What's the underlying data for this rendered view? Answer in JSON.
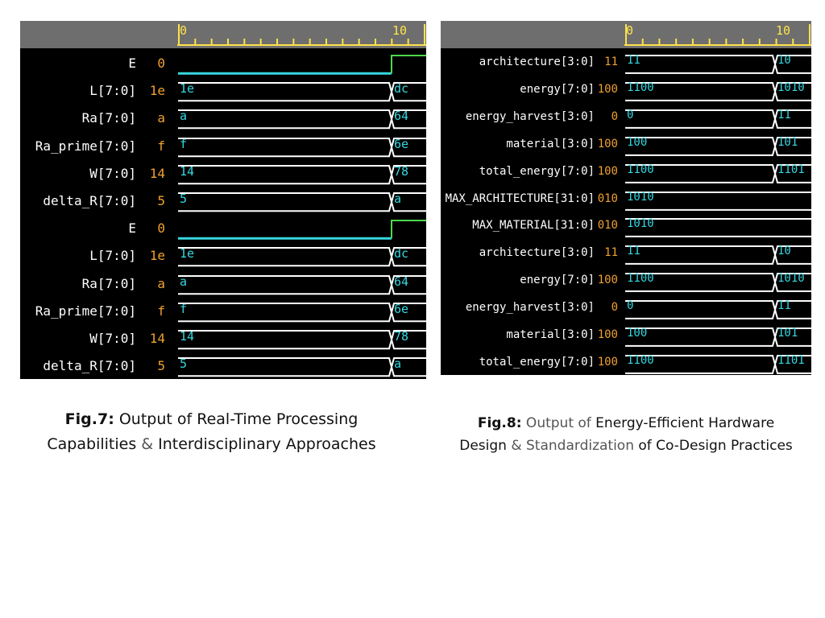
{
  "fig7": {
    "caption_label": "Fig.7:",
    "caption_line1_rest": " Output of Real-Time Processing",
    "caption_line2_a": "Capabilities",
    "caption_line2_amp": " & ",
    "caption_line2_b": "Interdisciplinary Approaches",
    "ruler": {
      "start": "0",
      "end": "10"
    },
    "signals": [
      {
        "name": "E",
        "value": "0",
        "type": "bit",
        "before": "low",
        "after": "high"
      },
      {
        "name": "L[7:0]",
        "value": "1e",
        "type": "bus",
        "before": "1e",
        "after": "dc"
      },
      {
        "name": "Ra[7:0]",
        "value": "a",
        "type": "bus",
        "before": "a",
        "after": "64"
      },
      {
        "name": "Ra_prime[7:0]",
        "value": "f",
        "type": "bus",
        "before": "f",
        "after": "6e"
      },
      {
        "name": "W[7:0]",
        "value": "14",
        "type": "bus",
        "before": "14",
        "after": "78"
      },
      {
        "name": "delta_R[7:0]",
        "value": "5",
        "type": "bus",
        "before": "5",
        "after": "a"
      },
      {
        "name": "E",
        "value": "0",
        "type": "bit",
        "before": "low",
        "after": "high"
      },
      {
        "name": "L[7:0]",
        "value": "1e",
        "type": "bus",
        "before": "1e",
        "after": "dc"
      },
      {
        "name": "Ra[7:0]",
        "value": "a",
        "type": "bus",
        "before": "a",
        "after": "64"
      },
      {
        "name": "Ra_prime[7:0]",
        "value": "f",
        "type": "bus",
        "before": "f",
        "after": "6e"
      },
      {
        "name": "W[7:0]",
        "value": "14",
        "type": "bus",
        "before": "14",
        "after": "78"
      },
      {
        "name": "delta_R[7:0]",
        "value": "5",
        "type": "bus",
        "before": "5",
        "after": "a"
      }
    ]
  },
  "fig8": {
    "caption_label": "Fig.8:",
    "caption_line1_a": " Output of",
    "caption_line1_b": " Energy-Efficient Hardware",
    "caption_line2_a": "Design",
    "caption_line2_amp": " & ",
    "caption_line2_b": "Standardization",
    "caption_line2_c": " of Co-Design Practices",
    "ruler": {
      "start": "0",
      "end": "10"
    },
    "signals": [
      {
        "name": "architecture[3:0]",
        "value": "11",
        "type": "bus",
        "before": "11",
        "after": "10"
      },
      {
        "name": "energy[7:0]",
        "value": "100",
        "type": "bus",
        "before": "1100",
        "after": "1010"
      },
      {
        "name": "energy_harvest[3:0]",
        "value": "0",
        "type": "bus",
        "before": "0",
        "after": "11"
      },
      {
        "name": "material[3:0]",
        "value": "100",
        "type": "bus",
        "before": "100",
        "after": "101"
      },
      {
        "name": "total_energy[7:0]",
        "value": "100",
        "type": "bus",
        "before": "1100",
        "after": "1101"
      },
      {
        "name": "MAX_ARCHITECTURE[31:0]",
        "value": "010",
        "type": "bus",
        "before": "1010",
        "after": ""
      },
      {
        "name": "MAX_MATERIAL[31:0]",
        "value": "010",
        "type": "bus",
        "before": "1010",
        "after": ""
      },
      {
        "name": "architecture[3:0]",
        "value": "11",
        "type": "bus",
        "before": "11",
        "after": "10"
      },
      {
        "name": "energy[7:0]",
        "value": "100",
        "type": "bus",
        "before": "1100",
        "after": "1010"
      },
      {
        "name": "energy_harvest[3:0]",
        "value": "0",
        "type": "bus",
        "before": "0",
        "after": "11"
      },
      {
        "name": "material[3:0]",
        "value": "100",
        "type": "bus",
        "before": "100",
        "after": "101"
      },
      {
        "name": "total_energy[7:0]",
        "value": "100",
        "type": "bus",
        "before": "1100",
        "after": "1101"
      }
    ]
  },
  "colors": {
    "header_bg": "#6e6e6e",
    "ruler": "#ffe34a",
    "bus": "#ffffff",
    "bit_low": "#35d8e0",
    "bit_high": "#4cd84c",
    "value_text": "#35d8e0",
    "signal_value": "#f0a030"
  }
}
